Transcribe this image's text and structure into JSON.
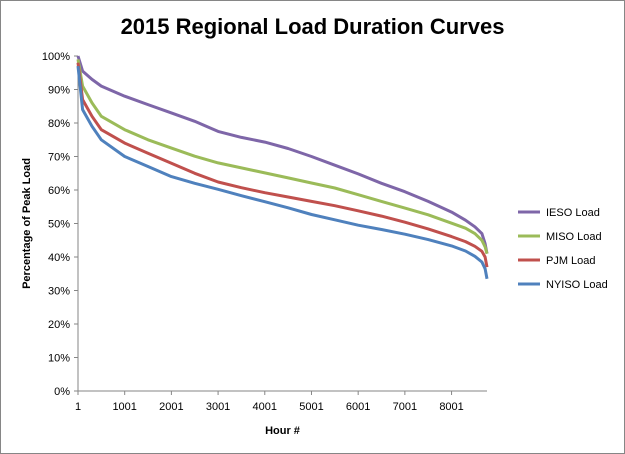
{
  "chart_data": {
    "type": "line",
    "title": "2015 Regional Load Duration Curves",
    "xlabel": "Hour #",
    "ylabel": "Percentage of Peak Load",
    "xlim": [
      1,
      8760
    ],
    "ylim": [
      0,
      100
    ],
    "x_ticks": [
      1,
      1001,
      2001,
      3001,
      4001,
      5001,
      6001,
      7001,
      8001
    ],
    "x_tick_labels": [
      "1",
      "1001",
      "2001",
      "3001",
      "4001",
      "5001",
      "6001",
      "7001",
      "8001"
    ],
    "y_ticks": [
      0,
      10,
      20,
      30,
      40,
      50,
      60,
      70,
      80,
      90,
      100
    ],
    "y_tick_labels": [
      "0%",
      "10%",
      "20%",
      "30%",
      "40%",
      "50%",
      "60%",
      "70%",
      "80%",
      "90%",
      "100%"
    ],
    "grid": false,
    "legend": "right",
    "x": [
      1,
      100,
      300,
      500,
      1001,
      1500,
      2001,
      2500,
      3001,
      3500,
      4001,
      4500,
      5001,
      5500,
      6001,
      6500,
      7001,
      7500,
      8001,
      8300,
      8500,
      8650,
      8720,
      8760
    ],
    "series": [
      {
        "name": "IESO Load",
        "color": "#7E66A8",
        "values": [
          100,
          95.5,
          93,
          91,
          88,
          85.5,
          83,
          80.5,
          77.5,
          75.7,
          74.3,
          72.4,
          70,
          67.4,
          64.8,
          62,
          59.5,
          56.6,
          53.4,
          51,
          49,
          47,
          44,
          41
        ]
      },
      {
        "name": "MISO Load",
        "color": "#9BBB59",
        "values": [
          99,
          91,
          86,
          82,
          78,
          75,
          72.5,
          70.1,
          68.1,
          66.6,
          65.1,
          63.6,
          62.1,
          60.6,
          58.6,
          56.6,
          54.6,
          52.6,
          50.1,
          48.6,
          47,
          45,
          43,
          41
        ]
      },
      {
        "name": "PJM Load",
        "color": "#C0504D",
        "values": [
          98,
          87,
          82,
          78,
          74,
          71,
          68,
          65,
          62.4,
          60.7,
          59.2,
          57.9,
          56.6,
          55.3,
          53.8,
          52.2,
          50.4,
          48.4,
          46.1,
          44.6,
          43.2,
          41.7,
          40,
          37
        ]
      },
      {
        "name": "NYISO Load",
        "color": "#4F81BD",
        "values": [
          97,
          84,
          79,
          75,
          70,
          67,
          64,
          62,
          60.2,
          58.3,
          56.5,
          54.7,
          52.7,
          51.1,
          49.5,
          48.2,
          46.8,
          45.2,
          43.3,
          41.8,
          40.2,
          38.5,
          36.5,
          33.5
        ]
      }
    ]
  }
}
